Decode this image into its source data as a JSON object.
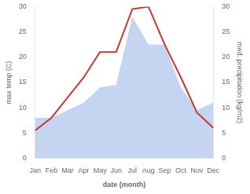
{
  "chart_data": {
    "type": "line",
    "xlabel": "date (month)",
    "ylabel": "max temp (C)",
    "y2label": "med. precipitation (kg/m2)",
    "categories": [
      "Jan",
      "Feb",
      "Mar",
      "Apr",
      "May",
      "Jun",
      "Jul",
      "Aug",
      "Sep",
      "Oct",
      "Nov",
      "Dec"
    ],
    "series": [
      {
        "type": "area",
        "color": "#c5d4f0",
        "axis": "y2",
        "values": [
          8.0,
          8.0,
          9.5,
          11.0,
          14.0,
          14.5,
          28.0,
          22.5,
          22.5,
          14.0,
          9.5,
          11.0
        ]
      },
      {
        "type": "line",
        "color": "#cc3333",
        "values": [
          5.5,
          8.0,
          12.0,
          16.0,
          21.0,
          21.0,
          29.5,
          30.0,
          22.5,
          16.0,
          9.0,
          6.0
        ]
      }
    ],
    "ylim": [
      0,
      30
    ],
    "yticks": [
      0,
      5,
      10,
      15,
      20,
      25,
      30
    ],
    "y2lim": [
      0,
      30
    ],
    "y2ticks": [
      0,
      5,
      10,
      15,
      20,
      25,
      30
    ],
    "grid": false
  }
}
